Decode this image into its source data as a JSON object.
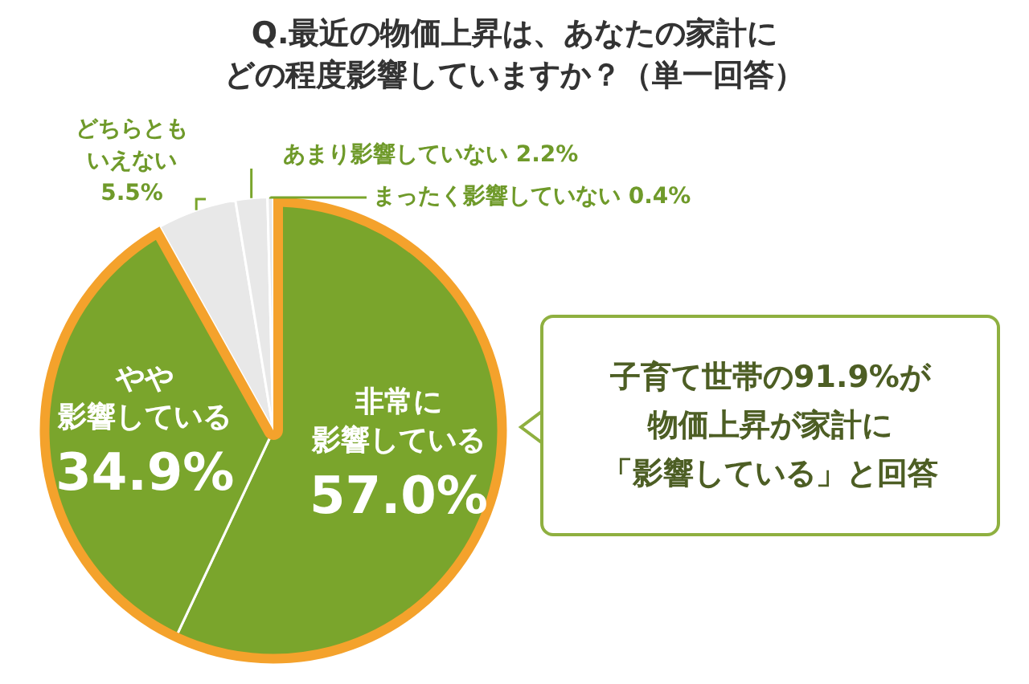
{
  "chart_data": {
    "type": "pie",
    "title": "Q.最近の物価上昇は、あなたの家計にどの程度影響していますか？（単一回答）",
    "categories": [
      "非常に影響している",
      "やや影響している",
      "どちらともいえない",
      "あまり影響していない",
      "まったく影響していない"
    ],
    "values": [
      57.0,
      34.9,
      5.5,
      2.2,
      0.4
    ],
    "value_labels": [
      "57.0%",
      "34.9%",
      "5.5%",
      "2.2%",
      "0.4%"
    ],
    "colors": [
      "#7aa52c",
      "#7aa52c",
      "#e8e8e8",
      "#e8e8e8",
      "#e8e8e8"
    ],
    "annotations": [
      "子育て世帯の91.9%が物価上昇が家計に「影響している」と回答"
    ],
    "legend": false
  }
}
